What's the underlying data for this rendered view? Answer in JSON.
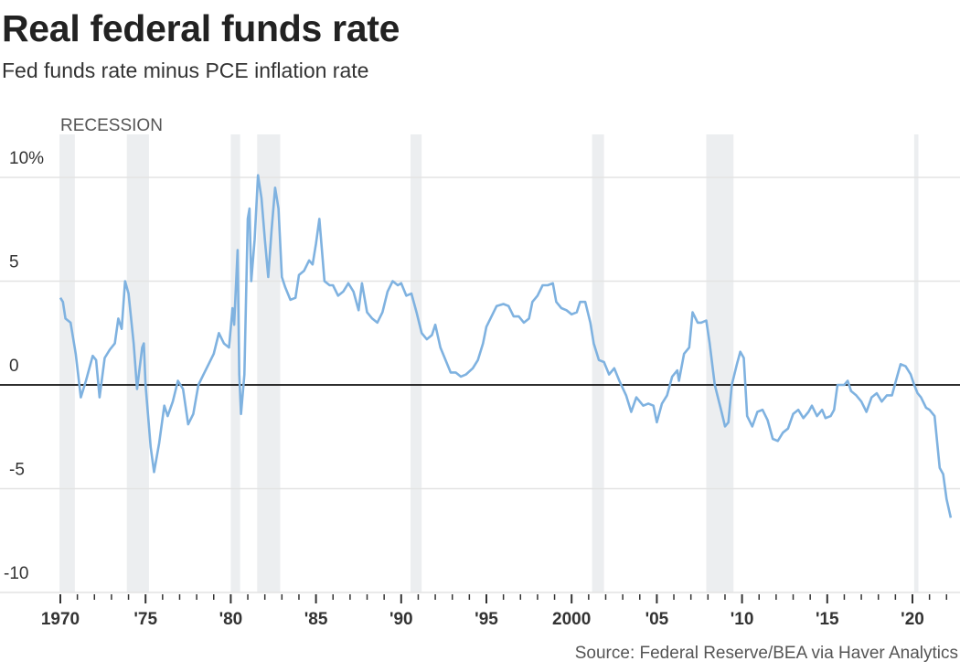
{
  "chart_data": {
    "type": "line",
    "title": "Real federal funds rate",
    "subtitle": "Fed funds rate minus PCE inflation rate",
    "source": "Source: Federal Reserve/BEA via Haver Analytics",
    "xlabel": "",
    "ylabel": "",
    "xlim": [
      1969.9,
      2022.6
    ],
    "ylim": [
      -10,
      10
    ],
    "grid": true,
    "y_ticks": [
      {
        "value": 10,
        "label": "10%"
      },
      {
        "value": 5,
        "label": "5"
      },
      {
        "value": 0,
        "label": "0"
      },
      {
        "value": -5,
        "label": "-5"
      },
      {
        "value": -10,
        "label": "-10"
      }
    ],
    "x_ticks": [
      {
        "value": 1970,
        "label": "1970"
      },
      {
        "value": 1975,
        "label": "'75"
      },
      {
        "value": 1980,
        "label": "'80"
      },
      {
        "value": 1985,
        "label": "'85"
      },
      {
        "value": 1990,
        "label": "'90"
      },
      {
        "value": 1995,
        "label": "'95"
      },
      {
        "value": 2000,
        "label": "2000"
      },
      {
        "value": 2005,
        "label": "'05"
      },
      {
        "value": 2010,
        "label": "'10"
      },
      {
        "value": 2015,
        "label": "'15"
      },
      {
        "value": 2020,
        "label": "'20"
      }
    ],
    "recession_label": "RECESSION",
    "recessions": [
      [
        1969.95,
        1970.85
      ],
      [
        1973.9,
        1975.2
      ],
      [
        1980.0,
        1980.55
      ],
      [
        1981.55,
        1982.9
      ],
      [
        1990.55,
        1991.2
      ],
      [
        2001.2,
        2001.9
      ],
      [
        2007.9,
        2009.5
      ],
      [
        2020.1,
        2020.35
      ]
    ],
    "colors": {
      "line": "#7fb2e0",
      "recession": "#eceef0",
      "grid": "#e3e3e3",
      "zero": "#111111"
    },
    "series": [
      {
        "name": "Real federal funds rate",
        "points": [
          [
            1970.0,
            4.2
          ],
          [
            1970.15,
            4.0
          ],
          [
            1970.3,
            3.2
          ],
          [
            1970.6,
            3.0
          ],
          [
            1970.9,
            1.5
          ],
          [
            1971.2,
            -0.6
          ],
          [
            1971.5,
            0.2
          ],
          [
            1971.9,
            1.4
          ],
          [
            1972.1,
            1.2
          ],
          [
            1972.3,
            -0.6
          ],
          [
            1972.6,
            1.3
          ],
          [
            1972.9,
            1.7
          ],
          [
            1973.2,
            2.0
          ],
          [
            1973.4,
            3.2
          ],
          [
            1973.6,
            2.7
          ],
          [
            1973.8,
            5.0
          ],
          [
            1974.0,
            4.4
          ],
          [
            1974.3,
            2.0
          ],
          [
            1974.5,
            -0.2
          ],
          [
            1974.8,
            1.8
          ],
          [
            1974.9,
            2.0
          ],
          [
            1975.0,
            0.0
          ],
          [
            1975.3,
            -3.0
          ],
          [
            1975.5,
            -4.2
          ],
          [
            1975.8,
            -2.8
          ],
          [
            1976.1,
            -1.0
          ],
          [
            1976.3,
            -1.5
          ],
          [
            1976.6,
            -0.8
          ],
          [
            1976.9,
            0.2
          ],
          [
            1977.2,
            -0.2
          ],
          [
            1977.5,
            -1.9
          ],
          [
            1977.8,
            -1.4
          ],
          [
            1978.1,
            0.0
          ],
          [
            1978.4,
            0.5
          ],
          [
            1978.7,
            1.0
          ],
          [
            1979.0,
            1.5
          ],
          [
            1979.3,
            2.5
          ],
          [
            1979.6,
            2.0
          ],
          [
            1979.9,
            1.8
          ],
          [
            1980.1,
            3.7
          ],
          [
            1980.2,
            2.9
          ],
          [
            1980.4,
            6.5
          ],
          [
            1980.5,
            0.5
          ],
          [
            1980.6,
            -1.4
          ],
          [
            1980.8,
            0.5
          ],
          [
            1981.0,
            8.0
          ],
          [
            1981.1,
            8.5
          ],
          [
            1981.2,
            5.0
          ],
          [
            1981.4,
            7.0
          ],
          [
            1981.6,
            10.1
          ],
          [
            1981.8,
            9.0
          ],
          [
            1982.0,
            7.0
          ],
          [
            1982.2,
            5.2
          ],
          [
            1982.4,
            7.5
          ],
          [
            1982.6,
            9.5
          ],
          [
            1982.8,
            8.5
          ],
          [
            1983.0,
            5.2
          ],
          [
            1983.2,
            4.7
          ],
          [
            1983.5,
            4.1
          ],
          [
            1983.8,
            4.2
          ],
          [
            1984.0,
            5.3
          ],
          [
            1984.3,
            5.5
          ],
          [
            1984.6,
            6.0
          ],
          [
            1984.8,
            5.8
          ],
          [
            1985.0,
            6.8
          ],
          [
            1985.2,
            8.0
          ],
          [
            1985.5,
            5.0
          ],
          [
            1985.8,
            4.8
          ],
          [
            1986.0,
            4.8
          ],
          [
            1986.3,
            4.3
          ],
          [
            1986.6,
            4.5
          ],
          [
            1986.9,
            4.9
          ],
          [
            1987.2,
            4.5
          ],
          [
            1987.5,
            3.6
          ],
          [
            1987.7,
            4.9
          ],
          [
            1988.0,
            3.5
          ],
          [
            1988.3,
            3.2
          ],
          [
            1988.6,
            3.0
          ],
          [
            1988.9,
            3.5
          ],
          [
            1989.2,
            4.5
          ],
          [
            1989.5,
            5.0
          ],
          [
            1989.8,
            4.8
          ],
          [
            1990.0,
            4.9
          ],
          [
            1990.3,
            4.3
          ],
          [
            1990.6,
            4.4
          ],
          [
            1990.9,
            3.5
          ],
          [
            1991.2,
            2.5
          ],
          [
            1991.5,
            2.2
          ],
          [
            1991.8,
            2.4
          ],
          [
            1992.0,
            2.9
          ],
          [
            1992.3,
            1.8
          ],
          [
            1992.6,
            1.2
          ],
          [
            1992.9,
            0.6
          ],
          [
            1993.2,
            0.6
          ],
          [
            1993.5,
            0.4
          ],
          [
            1993.8,
            0.5
          ],
          [
            1994.2,
            0.8
          ],
          [
            1994.5,
            1.2
          ],
          [
            1994.8,
            2.0
          ],
          [
            1995.0,
            2.8
          ],
          [
            1995.3,
            3.3
          ],
          [
            1995.6,
            3.8
          ],
          [
            1996.0,
            3.9
          ],
          [
            1996.3,
            3.8
          ],
          [
            1996.6,
            3.3
          ],
          [
            1996.9,
            3.3
          ],
          [
            1997.2,
            3.0
          ],
          [
            1997.5,
            3.2
          ],
          [
            1997.7,
            4.0
          ],
          [
            1998.0,
            4.3
          ],
          [
            1998.3,
            4.8
          ],
          [
            1998.6,
            4.8
          ],
          [
            1998.9,
            4.9
          ],
          [
            1999.1,
            4.0
          ],
          [
            1999.4,
            3.7
          ],
          [
            1999.7,
            3.6
          ],
          [
            2000.0,
            3.4
          ],
          [
            2000.3,
            3.5
          ],
          [
            2000.5,
            4.0
          ],
          [
            2000.8,
            4.0
          ],
          [
            2001.1,
            3.0
          ],
          [
            2001.3,
            2.0
          ],
          [
            2001.6,
            1.2
          ],
          [
            2001.9,
            1.1
          ],
          [
            2002.2,
            0.5
          ],
          [
            2002.5,
            0.8
          ],
          [
            2002.8,
            0.2
          ],
          [
            2003.2,
            -0.5
          ],
          [
            2003.5,
            -1.3
          ],
          [
            2003.8,
            -0.6
          ],
          [
            2004.2,
            -1.0
          ],
          [
            2004.5,
            -0.9
          ],
          [
            2004.8,
            -1.0
          ],
          [
            2005.0,
            -1.8
          ],
          [
            2005.3,
            -0.9
          ],
          [
            2005.6,
            -0.5
          ],
          [
            2005.9,
            0.4
          ],
          [
            2006.2,
            0.7
          ],
          [
            2006.3,
            0.2
          ],
          [
            2006.6,
            1.5
          ],
          [
            2006.9,
            1.8
          ],
          [
            2007.1,
            3.5
          ],
          [
            2007.4,
            3.0
          ],
          [
            2007.6,
            3.0
          ],
          [
            2007.9,
            3.1
          ],
          [
            2008.1,
            2.0
          ],
          [
            2008.4,
            0.0
          ],
          [
            2008.8,
            -1.3
          ],
          [
            2009.0,
            -2.0
          ],
          [
            2009.2,
            -1.8
          ],
          [
            2009.4,
            0.0
          ],
          [
            2009.7,
            1.0
          ],
          [
            2009.9,
            1.6
          ],
          [
            2010.1,
            1.3
          ],
          [
            2010.3,
            -1.5
          ],
          [
            2010.6,
            -2.0
          ],
          [
            2010.9,
            -1.3
          ],
          [
            2011.2,
            -1.2
          ],
          [
            2011.5,
            -1.7
          ],
          [
            2011.8,
            -2.6
          ],
          [
            2012.1,
            -2.7
          ],
          [
            2012.4,
            -2.3
          ],
          [
            2012.7,
            -2.1
          ],
          [
            2013.0,
            -1.4
          ],
          [
            2013.3,
            -1.2
          ],
          [
            2013.6,
            -1.6
          ],
          [
            2013.9,
            -1.3
          ],
          [
            2014.1,
            -1.0
          ],
          [
            2014.4,
            -1.5
          ],
          [
            2014.7,
            -1.2
          ],
          [
            2014.9,
            -1.6
          ],
          [
            2015.2,
            -1.5
          ],
          [
            2015.4,
            -1.2
          ],
          [
            2015.6,
            0.0
          ],
          [
            2016.0,
            0.0
          ],
          [
            2016.2,
            0.2
          ],
          [
            2016.4,
            -0.3
          ],
          [
            2016.7,
            -0.5
          ],
          [
            2017.0,
            -0.8
          ],
          [
            2017.3,
            -1.3
          ],
          [
            2017.6,
            -0.6
          ],
          [
            2017.9,
            -0.4
          ],
          [
            2018.2,
            -0.8
          ],
          [
            2018.5,
            -0.5
          ],
          [
            2018.8,
            -0.5
          ],
          [
            2019.1,
            0.4
          ],
          [
            2019.3,
            1.0
          ],
          [
            2019.6,
            0.9
          ],
          [
            2019.9,
            0.5
          ],
          [
            2020.1,
            0.0
          ],
          [
            2020.3,
            -0.4
          ],
          [
            2020.5,
            -0.6
          ],
          [
            2020.8,
            -1.1
          ],
          [
            2021.0,
            -1.2
          ],
          [
            2021.3,
            -1.5
          ],
          [
            2021.6,
            -4.0
          ],
          [
            2021.8,
            -4.3
          ],
          [
            2022.0,
            -5.5
          ],
          [
            2022.25,
            -6.4
          ]
        ]
      }
    ]
  }
}
